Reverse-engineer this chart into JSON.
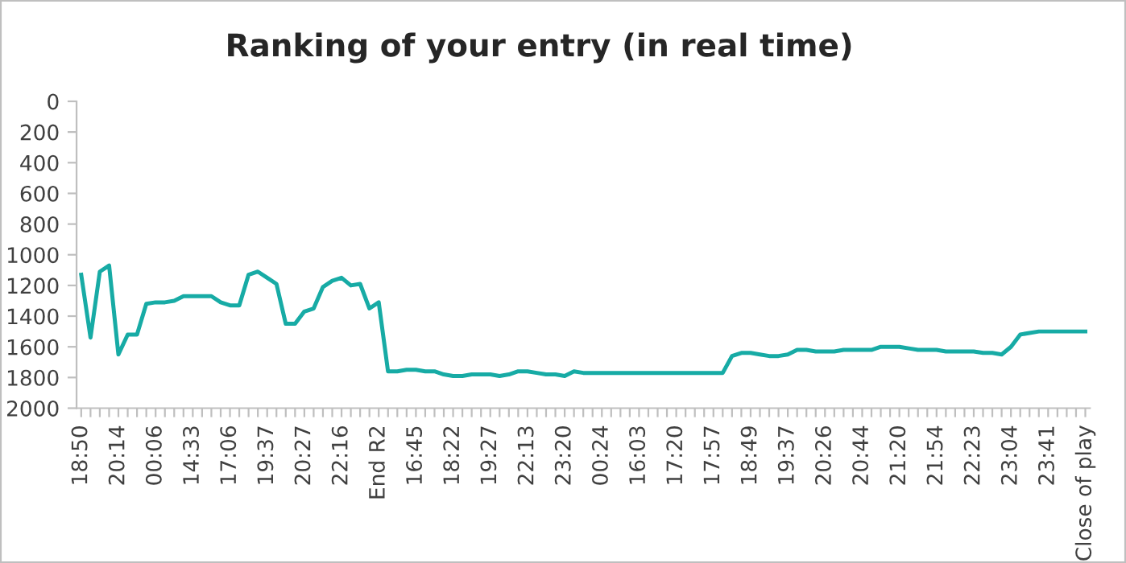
{
  "chart_data": {
    "type": "line",
    "title": "Ranking of your entry (in real time)",
    "categories": [
      "18:50",
      null,
      null,
      null,
      "20:14",
      null,
      null,
      null,
      "00:06",
      null,
      null,
      null,
      "14:33",
      null,
      null,
      null,
      "17:06",
      null,
      null,
      null,
      "19:37",
      null,
      null,
      null,
      "20:27",
      null,
      null,
      null,
      "22:16",
      null,
      null,
      null,
      "End R2",
      null,
      null,
      null,
      "16:45",
      null,
      null,
      null,
      "18:22",
      null,
      null,
      null,
      "19:27",
      null,
      null,
      null,
      "22:13",
      null,
      null,
      null,
      "23:20",
      null,
      null,
      null,
      "00:24",
      null,
      null,
      null,
      "16:03",
      null,
      null,
      null,
      "17:20",
      null,
      null,
      null,
      "17:57",
      null,
      null,
      null,
      "18:49",
      null,
      null,
      null,
      "19:37",
      null,
      null,
      null,
      "20:26",
      null,
      null,
      null,
      "20:44",
      null,
      null,
      null,
      "21:20",
      null,
      null,
      null,
      "21:54",
      null,
      null,
      null,
      "22:23",
      null,
      null,
      null,
      "23:04",
      null,
      null,
      null,
      "23:41",
      null,
      null,
      null,
      "Close of play"
    ],
    "series": [
      {
        "color": "#17aba5",
        "values": [
          1130,
          1540,
          1110,
          1070,
          1650,
          1520,
          1520,
          1320,
          1310,
          1310,
          1300,
          1270,
          1270,
          1270,
          1270,
          1310,
          1330,
          1330,
          1130,
          1110,
          1150,
          1190,
          1450,
          1450,
          1370,
          1350,
          1210,
          1170,
          1150,
          1200,
          1190,
          1350,
          1310,
          1760,
          1760,
          1750,
          1750,
          1760,
          1760,
          1780,
          1790,
          1790,
          1780,
          1780,
          1780,
          1790,
          1780,
          1760,
          1760,
          1770,
          1780,
          1780,
          1790,
          1760,
          1770,
          1770,
          1770,
          1770,
          1770,
          1770,
          1770,
          1770,
          1770,
          1770,
          1770,
          1770,
          1770,
          1770,
          1770,
          1770,
          1660,
          1640,
          1640,
          1650,
          1660,
          1660,
          1650,
          1620,
          1620,
          1630,
          1630,
          1630,
          1620,
          1620,
          1620,
          1620,
          1600,
          1600,
          1600,
          1610,
          1620,
          1620,
          1620,
          1630,
          1630,
          1630,
          1630,
          1640,
          1640,
          1650,
          1600,
          1520,
          1510,
          1500,
          1500,
          1500,
          1500,
          1500,
          1500
        ]
      }
    ],
    "ylim": [
      2000,
      0
    ],
    "yticks": [
      0,
      200,
      400,
      600,
      800,
      1000,
      1200,
      1400,
      1600,
      1800,
      2000
    ],
    "grid": false,
    "legend": false,
    "marker": "none",
    "line_style": "solid"
  }
}
